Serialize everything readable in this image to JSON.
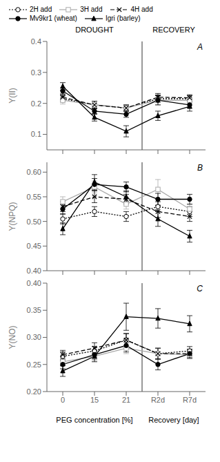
{
  "chart_data": [
    {
      "type": "line",
      "title": "A",
      "ylabel": "Y(II)",
      "categories": [
        "0",
        "15",
        "21",
        "R2d",
        "R7d"
      ],
      "series": [
        {
          "name": "2H add",
          "color": "#000000",
          "marker": "open_circle",
          "line_style": "dotted",
          "values": [
            0.215,
            0.195,
            0.185,
            0.215,
            0.215
          ],
          "yerr": [
            0.01,
            0.012,
            0.01,
            0.012,
            0.01
          ]
        },
        {
          "name": "3H add",
          "color": "#aaaaaa",
          "marker": "open_square",
          "line_style": "solid",
          "values": [
            0.21,
            0.195,
            0.185,
            0.21,
            0.21
          ],
          "yerr": [
            0.012,
            0.012,
            0.01,
            0.014,
            0.01
          ]
        },
        {
          "name": "4H add",
          "color": "#000000",
          "marker": "x",
          "line_style": "dashed",
          "values": [
            0.22,
            0.195,
            0.185,
            0.22,
            0.218
          ],
          "yerr": [
            0.01,
            0.012,
            0.01,
            0.012,
            0.01
          ]
        },
        {
          "name": "Mv9kr1 (wheat)",
          "color": "#000000",
          "marker": "circle",
          "line_style": "solid",
          "values": [
            0.24,
            0.175,
            0.165,
            0.21,
            0.195
          ],
          "yerr": [
            0.01,
            0.01,
            0.01,
            0.015,
            0.01
          ]
        },
        {
          "name": "Igri (barley)",
          "color": "#000000",
          "marker": "triangle",
          "line_style": "solid",
          "values": [
            0.255,
            0.155,
            0.11,
            0.16,
            0.19
          ],
          "yerr": [
            0.012,
            0.012,
            0.018,
            0.015,
            0.015
          ]
        }
      ],
      "ylim": [
        0.05,
        0.4
      ],
      "yticks": [
        0.1,
        0.2,
        0.3,
        0.4
      ],
      "grid": false,
      "tick_labels": "y",
      "legend": "top",
      "annotations": [
        "DROUGHT",
        "RECOVERY"
      ]
    },
    {
      "type": "line",
      "title": "B",
      "ylabel": "Y(NPQ)",
      "categories": [
        "0",
        "15",
        "21",
        "R2d",
        "R7d"
      ],
      "series": [
        {
          "name": "2H add",
          "color": "#000000",
          "marker": "open_circle",
          "line_style": "dotted",
          "values": [
            0.505,
            0.52,
            0.51,
            0.53,
            0.52
          ],
          "yerr": [
            0.01,
            0.01,
            0.01,
            0.01,
            0.01
          ]
        },
        {
          "name": "3H add",
          "color": "#aaaaaa",
          "marker": "open_square",
          "line_style": "solid",
          "values": [
            0.54,
            0.57,
            0.535,
            0.565,
            0.525
          ],
          "yerr": [
            0.01,
            0.012,
            0.01,
            0.02,
            0.01
          ]
        },
        {
          "name": "4H add",
          "color": "#000000",
          "marker": "x",
          "line_style": "dashed",
          "values": [
            0.53,
            0.55,
            0.545,
            0.52,
            0.51
          ],
          "yerr": [
            0.01,
            0.012,
            0.01,
            0.012,
            0.01
          ]
        },
        {
          "name": "Mv9kr1 (wheat)",
          "color": "#000000",
          "marker": "circle",
          "line_style": "solid",
          "values": [
            0.525,
            0.575,
            0.57,
            0.545,
            0.545
          ],
          "yerr": [
            0.01,
            0.012,
            0.01,
            0.012,
            0.01
          ]
        },
        {
          "name": "Igri (barley)",
          "color": "#000000",
          "marker": "triangle",
          "line_style": "solid",
          "values": [
            0.485,
            0.58,
            0.55,
            0.505,
            0.47
          ],
          "yerr": [
            0.012,
            0.015,
            0.012,
            0.015,
            0.012
          ]
        }
      ],
      "ylim": [
        0.4,
        0.62
      ],
      "yticks": [
        {
          "value": 0.4,
          "label": "0.40"
        },
        {
          "value": 0.45,
          "label": "0.45"
        },
        {
          "value": 0.5,
          "label": "0.50"
        },
        {
          "value": 0.55,
          "label": "0.55"
        },
        {
          "value": 0.6,
          "label": "0.60"
        }
      ],
      "grid": false,
      "tick_labels": "y"
    },
    {
      "type": "line",
      "title": "C",
      "ylabel": "Y(NO)",
      "categories": [
        "0",
        "15",
        "21",
        "R2d",
        "R7d"
      ],
      "series": [
        {
          "name": "2H add",
          "color": "#000000",
          "marker": "open_circle",
          "line_style": "dotted",
          "values": [
            0.265,
            0.275,
            0.295,
            0.27,
            0.275
          ],
          "yerr": [
            0.008,
            0.008,
            0.012,
            0.01,
            0.008
          ]
        },
        {
          "name": "3H add",
          "color": "#aaaaaa",
          "marker": "open_square",
          "line_style": "solid",
          "values": [
            0.255,
            0.265,
            0.28,
            0.27,
            0.268
          ],
          "yerr": [
            0.008,
            0.008,
            0.01,
            0.01,
            0.008
          ]
        },
        {
          "name": "4H add",
          "color": "#000000",
          "marker": "x",
          "line_style": "dashed",
          "values": [
            0.268,
            0.28,
            0.295,
            0.27,
            0.27
          ],
          "yerr": [
            0.008,
            0.01,
            0.012,
            0.01,
            0.008
          ]
        },
        {
          "name": "Mv9kr1 (wheat)",
          "color": "#000000",
          "marker": "circle",
          "line_style": "solid",
          "values": [
            0.25,
            0.268,
            0.285,
            0.25,
            0.27
          ],
          "yerr": [
            0.008,
            0.008,
            0.012,
            0.01,
            0.008
          ]
        },
        {
          "name": "Igri (barley)",
          "color": "#000000",
          "marker": "triangle",
          "line_style": "solid",
          "values": [
            0.238,
            0.265,
            0.338,
            0.335,
            0.325
          ],
          "yerr": [
            0.01,
            0.01,
            0.025,
            0.018,
            0.015
          ]
        }
      ],
      "ylim": [
        0.2,
        0.4
      ],
      "yticks": [
        {
          "value": 0.2,
          "label": "0.20"
        },
        {
          "value": 0.25,
          "label": "0.25"
        },
        {
          "value": 0.3,
          "label": "0.30"
        },
        {
          "value": 0.35,
          "label": "0.35"
        },
        {
          "value": 0.4,
          "label": "0.40"
        }
      ],
      "grid": false,
      "xlabel": [
        "PEG concentration [%]",
        "Recovery [day]"
      ]
    }
  ]
}
